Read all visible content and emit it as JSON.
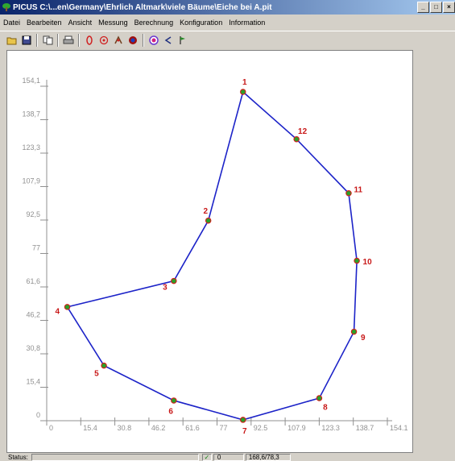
{
  "window": {
    "title": "PICUS C:\\...en\\Germany\\Ehrlich Altmark\\viele Bäume\\Eiche bei A.pit",
    "icon": "tree-icon",
    "min_label": "_",
    "max_label": "□",
    "close_label": "×"
  },
  "menu": [
    "Datei",
    "Bearbeiten",
    "Ansicht",
    "Messung",
    "Berechnung",
    "Konfiguration",
    "Information"
  ],
  "toolbar": {
    "icons": [
      "open-folder-icon",
      "save-icon",
      "copy-icon",
      "print-icon",
      "ellipse-icon",
      "tree-section-icon",
      "measure-icon",
      "color-icon",
      "target-icon",
      "arrow-icon",
      "flag-icon"
    ]
  },
  "chart_data": {
    "type": "scatter",
    "connected": true,
    "closed": true,
    "xlim": [
      0,
      154.1
    ],
    "ylim": [
      0,
      154.1
    ],
    "xticks": [
      "0",
      "15.4",
      "30.8",
      "46.2",
      "61.6",
      "77",
      "92.5",
      "107.9",
      "123.3",
      "138.7",
      "154.1"
    ],
    "yticks": [
      "0",
      "15,4",
      "30,8",
      "46,2",
      "61,6",
      "77",
      "92,5",
      "107,9",
      "123,3",
      "138,7",
      "154,1"
    ],
    "points": [
      {
        "label": "1",
        "x": 88.8,
        "y": 151.5
      },
      {
        "label": "2",
        "x": 73.1,
        "y": 92.2
      },
      {
        "label": "3",
        "x": 57.5,
        "y": 64.4
      },
      {
        "label": "4",
        "x": 9.3,
        "y": 52.4
      },
      {
        "label": "5",
        "x": 25.9,
        "y": 25.4
      },
      {
        "label": "6",
        "x": 57.5,
        "y": 9.3
      },
      {
        "label": "7",
        "x": 88.8,
        "y": 0.4
      },
      {
        "label": "8",
        "x": 123.3,
        "y": 10.4
      },
      {
        "label": "9",
        "x": 139.0,
        "y": 41.0
      },
      {
        "label": "10",
        "x": 140.3,
        "y": 73.7
      },
      {
        "label": "11",
        "x": 136.6,
        "y": 104.8
      },
      {
        "label": "12",
        "x": 113.0,
        "y": 129.7
      }
    ],
    "line_color": "#1c23c8",
    "marker_color": "#2aa02a",
    "marker_edge": "#d81a1a",
    "label_color": "#c81818",
    "grid": false
  },
  "status": {
    "label": "Status:",
    "check": "✓",
    "value1": "0",
    "coords": "168,6/78,3"
  }
}
